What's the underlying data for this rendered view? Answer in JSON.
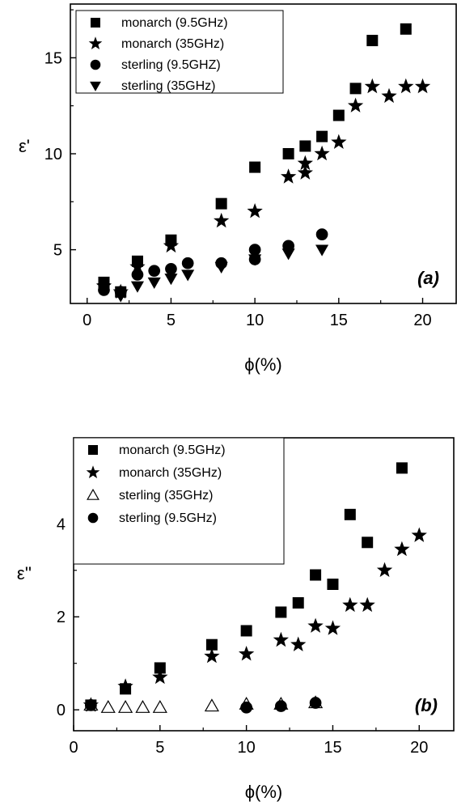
{
  "chart_data": [
    {
      "type": "scatter",
      "panel_label": "(a)",
      "xlabel": "ϕ(%)",
      "ylabel": "ε'",
      "xlim": [
        -1,
        22
      ],
      "ylim": [
        2.2,
        17.8
      ],
      "xticks": [
        0,
        5,
        10,
        15,
        20
      ],
      "yticks": [
        5,
        10,
        15
      ],
      "legend_position": "top-left",
      "series": [
        {
          "name": "monarch (9.5GHz)",
          "marker": "square",
          "points": [
            [
              1,
              3.3
            ],
            [
              2,
              2.8
            ],
            [
              3,
              4.4
            ],
            [
              5,
              5.5
            ],
            [
              8,
              7.4
            ],
            [
              10,
              9.3
            ],
            [
              12,
              10.0
            ],
            [
              13,
              10.4
            ],
            [
              14,
              10.9
            ],
            [
              15,
              12.0
            ],
            [
              16,
              13.4
            ],
            [
              17,
              15.9
            ],
            [
              19,
              16.5
            ]
          ]
        },
        {
          "name": "monarch (35GHz)",
          "marker": "star",
          "points": [
            [
              1,
              3.1
            ],
            [
              2,
              2.8
            ],
            [
              3,
              4.1
            ],
            [
              5,
              5.2
            ],
            [
              8,
              6.5
            ],
            [
              10,
              7.0
            ],
            [
              12,
              8.8
            ],
            [
              13,
              9.0
            ],
            [
              13,
              9.5
            ],
            [
              14,
              10.0
            ],
            [
              15,
              10.6
            ],
            [
              16,
              12.5
            ],
            [
              17,
              13.5
            ],
            [
              18,
              13.0
            ],
            [
              19,
              13.5
            ],
            [
              20,
              13.5
            ]
          ]
        },
        {
          "name": "sterling (9.5GHZ)",
          "marker": "circle",
          "points": [
            [
              1,
              2.9
            ],
            [
              2,
              2.8
            ],
            [
              3,
              3.7
            ],
            [
              4,
              3.9
            ],
            [
              5,
              4.0
            ],
            [
              6,
              4.3
            ],
            [
              8,
              4.3
            ],
            [
              10,
              4.5
            ],
            [
              10,
              5.0
            ],
            [
              12,
              5.2
            ],
            [
              14,
              5.8
            ]
          ]
        },
        {
          "name": "sterling (35GHz)",
          "marker": "triangle-down",
          "points": [
            [
              1,
              3.0
            ],
            [
              2,
              2.6
            ],
            [
              3,
              3.1
            ],
            [
              4,
              3.3
            ],
            [
              5,
              3.5
            ],
            [
              6,
              3.7
            ],
            [
              8,
              4.1
            ],
            [
              10,
              4.5
            ],
            [
              12,
              4.8
            ],
            [
              14,
              5.0
            ]
          ]
        }
      ]
    },
    {
      "type": "scatter",
      "panel_label": "(b)",
      "xlabel": "ϕ(%)",
      "ylabel": "ε''",
      "xlim": [
        0,
        22
      ],
      "ylim": [
        -0.45,
        5.85
      ],
      "xticks": [
        0,
        5,
        10,
        15,
        20
      ],
      "yticks": [
        0,
        2,
        4
      ],
      "legend_position": "top-left",
      "series": [
        {
          "name": "monarch (9.5GHz)",
          "marker": "square",
          "points": [
            [
              1,
              0.1
            ],
            [
              3,
              0.45
            ],
            [
              5,
              0.9
            ],
            [
              8,
              1.4
            ],
            [
              10,
              1.7
            ],
            [
              12,
              2.1
            ],
            [
              13,
              2.3
            ],
            [
              14,
              2.9
            ],
            [
              15,
              2.7
            ],
            [
              16,
              4.2
            ],
            [
              17,
              3.6
            ],
            [
              19,
              5.2
            ]
          ]
        },
        {
          "name": "monarch (35GHz)",
          "marker": "star",
          "points": [
            [
              1,
              0.1
            ],
            [
              3,
              0.5
            ],
            [
              5,
              0.7
            ],
            [
              8,
              1.15
            ],
            [
              10,
              1.2
            ],
            [
              12,
              1.5
            ],
            [
              13,
              1.4
            ],
            [
              14,
              1.8
            ],
            [
              15,
              1.75
            ],
            [
              16,
              2.25
            ],
            [
              17,
              2.25
            ],
            [
              18,
              3.0
            ],
            [
              19,
              3.45
            ],
            [
              20,
              3.75
            ]
          ]
        },
        {
          "name": "sterling (35GHz)",
          "marker": "triangle-up-open",
          "points": [
            [
              1,
              0.1
            ],
            [
              2,
              0.05
            ],
            [
              3,
              0.05
            ],
            [
              4,
              0.05
            ],
            [
              5,
              0.05
            ],
            [
              8,
              0.08
            ],
            [
              10,
              0.12
            ],
            [
              12,
              0.12
            ],
            [
              14,
              0.15
            ]
          ]
        },
        {
          "name": "sterling (9.5GHz)",
          "marker": "circle",
          "points": [
            [
              1,
              0.1
            ],
            [
              10,
              0.05
            ],
            [
              12,
              0.08
            ],
            [
              14,
              0.15
            ]
          ]
        }
      ]
    }
  ]
}
